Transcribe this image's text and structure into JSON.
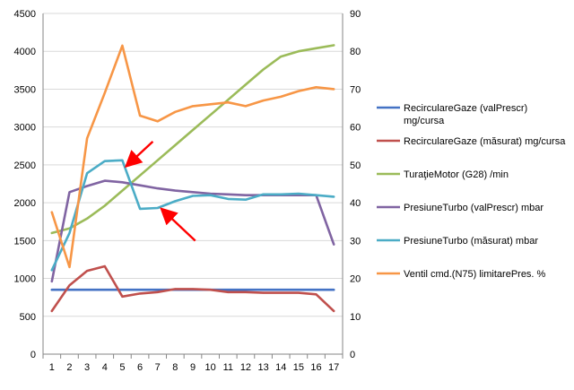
{
  "chart_data": {
    "type": "line",
    "title": "",
    "xlabel": "",
    "ylabel_left": "",
    "ylabel_right": "",
    "x": [
      1,
      2,
      3,
      4,
      5,
      6,
      7,
      8,
      9,
      10,
      11,
      12,
      13,
      14,
      15,
      16,
      17
    ],
    "left_axis": {
      "min": 0,
      "max": 4500,
      "step": 500,
      "ticks": [
        "0",
        "500",
        "1000",
        "1500",
        "2000",
        "2500",
        "3000",
        "3500",
        "4000",
        "4500"
      ]
    },
    "right_axis": {
      "min": 0,
      "max": 90,
      "step": 10,
      "ticks": [
        "0",
        "10",
        "20",
        "30",
        "40",
        "50",
        "60",
        "70",
        "80",
        "90"
      ]
    },
    "x_ticks": [
      "1",
      "2",
      "3",
      "4",
      "5",
      "6",
      "7",
      "8",
      "9",
      "10",
      "11",
      "12",
      "13",
      "14",
      "15",
      "16",
      "17"
    ],
    "grid": true,
    "legend_position": "right",
    "series": [
      {
        "name": "RecirculareGaze (valPrescr)",
        "unit": "mg/cursa",
        "axis": "left",
        "color": "#4472C4",
        "values": [
          850,
          850,
          850,
          850,
          850,
          850,
          850,
          850,
          850,
          850,
          850,
          850,
          850,
          850,
          850,
          850,
          850
        ]
      },
      {
        "name": "RecirculareGaze (măsurat)",
        "unit": "mg/cursa",
        "axis": "left",
        "color": "#C0504D",
        "values": [
          570,
          910,
          1100,
          1160,
          760,
          800,
          820,
          860,
          860,
          850,
          820,
          820,
          810,
          810,
          810,
          790,
          570
        ]
      },
      {
        "name": "TuraţieMotor (G28)",
        "unit": "/min",
        "axis": "left",
        "color": "#9BBB59",
        "values": [
          1600,
          1660,
          1790,
          1960,
          2160,
          2360,
          2560,
          2760,
          2960,
          3160,
          3360,
          3560,
          3760,
          3930,
          4000,
          4040,
          4080
        ]
      },
      {
        "name": "PresiuneTurbo (valPrescr)",
        "unit": "mbar",
        "axis": "left",
        "color": "#8064A2",
        "values": [
          960,
          2140,
          2220,
          2290,
          2270,
          2230,
          2190,
          2160,
          2140,
          2120,
          2110,
          2100,
          2100,
          2100,
          2100,
          2100,
          1450
        ]
      },
      {
        "name": "PresiuneTurbo (măsurat)",
        "unit": "mbar",
        "axis": "left",
        "color": "#4BACC6",
        "values": [
          1110,
          1600,
          2390,
          2550,
          2560,
          1920,
          1930,
          2020,
          2090,
          2100,
          2050,
          2040,
          2110,
          2110,
          2120,
          2100,
          2080
        ]
      },
      {
        "name": "Ventil cmd.(N75) limitarePres.",
        "unit": "%",
        "axis": "right",
        "color": "#F79646",
        "values": [
          37.5,
          23,
          57,
          69,
          81.5,
          63,
          61.5,
          64,
          65.5,
          66,
          66.5,
          65.5,
          67,
          68,
          69.5,
          70.5,
          70
        ]
      }
    ],
    "annotations": [
      {
        "type": "arrow",
        "color": "#FF0000",
        "points_to": {
          "x": 5,
          "y": 2500
        }
      },
      {
        "type": "arrow",
        "color": "#FF0000",
        "points_to": {
          "x": 7,
          "y": 1900
        }
      }
    ]
  }
}
